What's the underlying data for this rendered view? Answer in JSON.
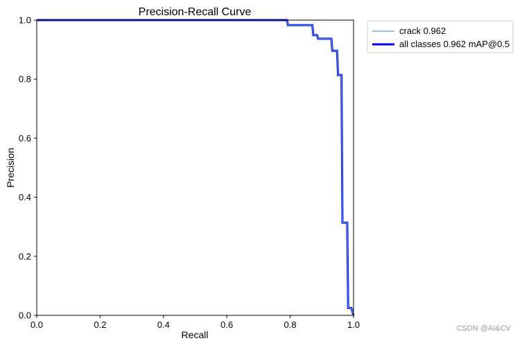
{
  "chart_data": {
    "type": "line",
    "title": "Precision-Recall Curve",
    "xlabel": "Recall",
    "ylabel": "Precision",
    "xlim": [
      0,
      1
    ],
    "ylim": [
      0,
      1
    ],
    "xticks": [
      "0.0",
      "0.2",
      "0.4",
      "0.6",
      "0.8",
      "1.0"
    ],
    "yticks": [
      "0.0",
      "0.2",
      "0.4",
      "0.6",
      "0.8",
      "1.0"
    ],
    "grid": false,
    "legend_position": "outside-top-right",
    "series": [
      {
        "name": "crack 0.962",
        "color": "#5b9bd5",
        "line": "thin",
        "x": [
          0,
          0.79,
          0.793,
          0.87,
          0.873,
          0.885,
          0.888,
          0.93,
          0.933,
          0.948,
          0.951,
          0.962,
          0.965,
          0.98,
          0.983,
          0.993,
          1.0
        ],
        "y": [
          1.0,
          1.0,
          0.983,
          0.983,
          0.949,
          0.949,
          0.937,
          0.937,
          0.896,
          0.896,
          0.814,
          0.814,
          0.314,
          0.314,
          0.025,
          0.025,
          0.0
        ]
      },
      {
        "name": "all classes 0.962 mAP@0.5",
        "color": "#0000ee",
        "line": "thick",
        "x": [
          0,
          0.79,
          0.793,
          0.87,
          0.873,
          0.885,
          0.888,
          0.93,
          0.933,
          0.948,
          0.951,
          0.962,
          0.965,
          0.98,
          0.983,
          0.993,
          1.0
        ],
        "y": [
          1.0,
          1.0,
          0.983,
          0.983,
          0.949,
          0.949,
          0.937,
          0.937,
          0.896,
          0.896,
          0.814,
          0.814,
          0.314,
          0.314,
          0.025,
          0.025,
          0.0
        ]
      }
    ]
  },
  "watermark": "CSDN @AI&CV"
}
